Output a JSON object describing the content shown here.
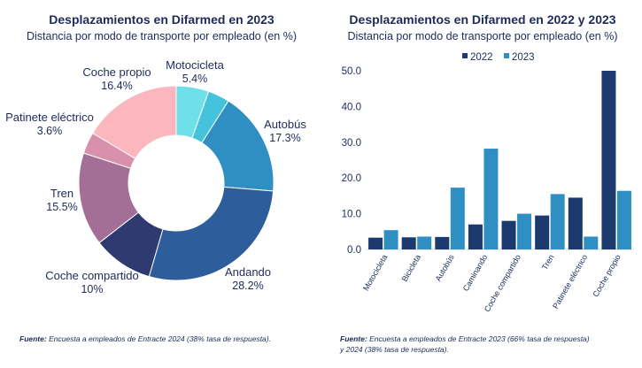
{
  "chart_data": [
    {
      "type": "pie",
      "title": "Desplazamientos en Difarmed en 2023",
      "subtitle": "Distancia por modo de transporte por empleado (en %)",
      "slices": [
        {
          "label": "Motocicleta",
          "value": 5.4,
          "value_label": "5.4%",
          "color": "#6fe0ea"
        },
        {
          "label": "",
          "value": 3.6,
          "value_label": "",
          "color": "#45c2dc"
        },
        {
          "label": "Autobús",
          "value": 17.3,
          "value_label": "17.3%",
          "color": "#2f8fc2"
        },
        {
          "label": "Andando",
          "value": 28.2,
          "value_label": "28.2%",
          "color": "#2d5d9a"
        },
        {
          "label": "Coche compartido",
          "value": 10,
          "value_label": "10%",
          "color": "#2e3a70"
        },
        {
          "label": "Tren",
          "value": 15.5,
          "value_label": "15.5%",
          "color": "#a36f97"
        },
        {
          "label": "Patinete eléctrico",
          "value": 3.6,
          "value_label": "3.6%",
          "color": "#d890ab"
        },
        {
          "label": "Coche propio",
          "value": 16.4,
          "value_label": "16.4%",
          "color": "#fbb6be"
        }
      ],
      "donut": true,
      "source_label": "Fuente:",
      "source_text": " Encuesta a empleados de Entracte 2024 (38% tasa de respuesta)."
    },
    {
      "type": "bar",
      "title": "Desplazamientos en Difarmed en 2022 y 2023",
      "subtitle": "Distancia por modo de transporte por empleado (en %)",
      "categories": [
        "Motocicleta",
        "Bicicleta",
        "Autobús",
        "Caminando",
        "Coche compartido",
        "Tren",
        "Patinete eléctrico",
        "Coche propio"
      ],
      "series": [
        {
          "name": "2022",
          "color": "#1d3a6e",
          "values": [
            3.3,
            3.4,
            3.5,
            7.0,
            8.0,
            9.5,
            14.5,
            50.0
          ]
        },
        {
          "name": "2023",
          "color": "#2f8fc2",
          "values": [
            5.4,
            3.6,
            17.3,
            28.2,
            10.0,
            15.5,
            3.6,
            16.4
          ]
        }
      ],
      "ylim": [
        0,
        50
      ],
      "yticks": [
        "0.0",
        "10.0",
        "20.0",
        "30.0",
        "40.0",
        "50.0"
      ],
      "ytick_values": [
        0,
        10,
        20,
        30,
        40,
        50
      ],
      "legend_position": "top",
      "source_label": "Fuente:",
      "source_line1": " Encuesta a empleados de Entracte 2023 (66% tasa de respuesta)",
      "source_line2": "y 2024 (38% tasa de respuesta)."
    }
  ]
}
